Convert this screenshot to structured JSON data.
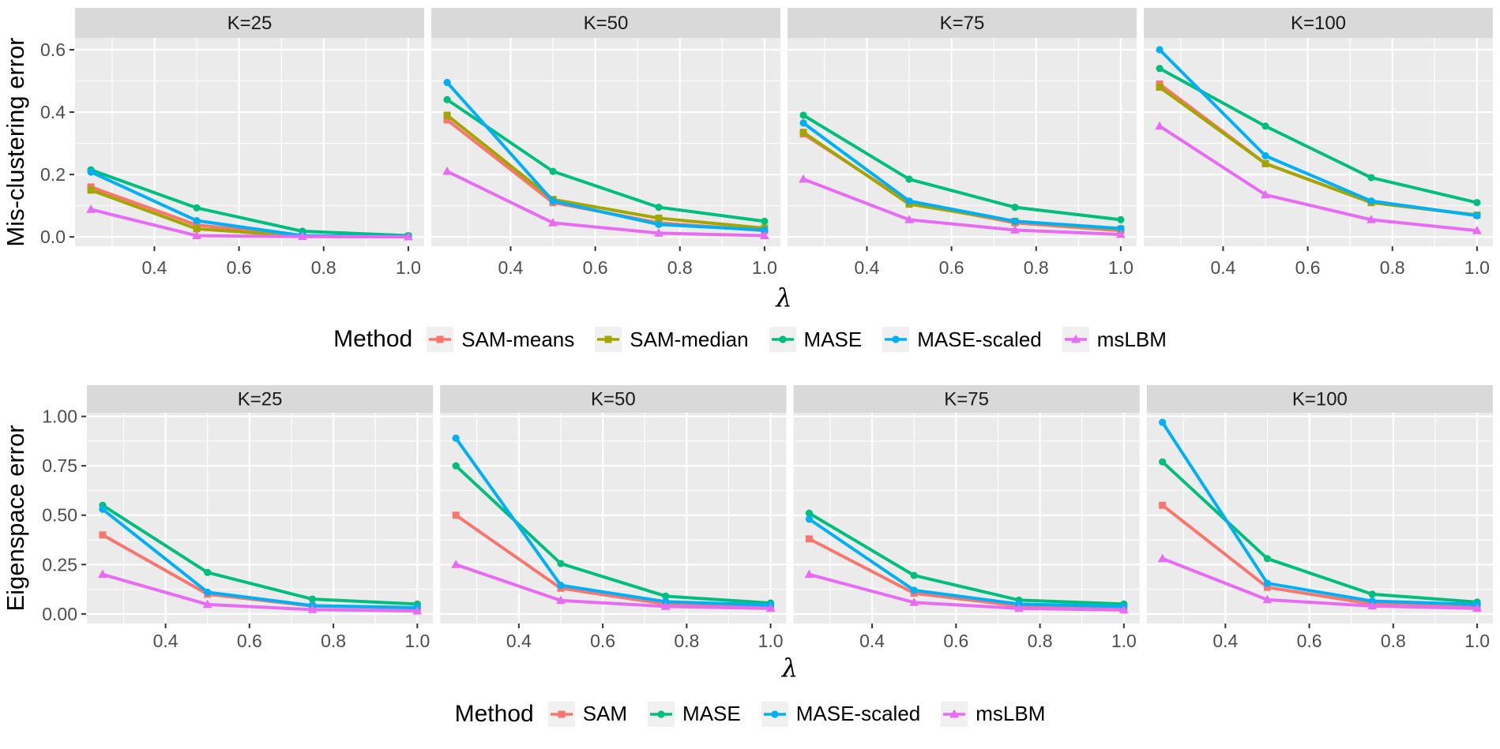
{
  "figure": {
    "background": "#ffffff",
    "panel_background": "#ebebeb",
    "strip_background": "#d9d9d9",
    "grid_color": "#ffffff",
    "axis_text_color": "#4d4d4d",
    "tick_mark_color": "#333333"
  },
  "chart_data": [
    {
      "type": "line",
      "title": "",
      "ylabel": "Mis-clustering error",
      "xlabel": "λ",
      "legend_title": "Method",
      "legend_position": "bottom",
      "grid": true,
      "facet_labels": [
        "K=25",
        "K=50",
        "K=75",
        "K=100"
      ],
      "x": [
        0.25,
        0.5,
        0.75,
        1.0
      ],
      "xlim": [
        0.2125,
        1.0375
      ],
      "ylim": [
        -0.03,
        0.638
      ],
      "x_major_ticks": [
        0.4,
        0.6,
        0.8,
        1.0
      ],
      "x_tick_labels": [
        "0.4",
        "0.6",
        "0.8",
        "1.0"
      ],
      "x_minor_ticks": [
        0.3,
        0.5,
        0.7,
        0.9
      ],
      "y_major_ticks": [
        0.0,
        0.2,
        0.4,
        0.6
      ],
      "y_tick_labels": [
        "0.0",
        "0.2",
        "0.4",
        "0.6"
      ],
      "y_minor_ticks": [
        0.1,
        0.3,
        0.5
      ],
      "methods": [
        {
          "name": "SAM-means",
          "color": "#F8766D",
          "shape": "square"
        },
        {
          "name": "SAM-median",
          "color": "#A3A500",
          "shape": "square"
        },
        {
          "name": "MASE",
          "color": "#00BF7D",
          "shape": "circle"
        },
        {
          "name": "MASE-scaled",
          "color": "#00B0F6",
          "shape": "circle"
        },
        {
          "name": "msLBM",
          "color": "#E76BF3",
          "shape": "triangle"
        }
      ],
      "facets": [
        {
          "label": "K=25",
          "series": [
            {
              "name": "SAM-means",
              "values": [
                0.16,
                0.038,
                0.003,
                0.001
              ]
            },
            {
              "name": "SAM-median",
              "values": [
                0.15,
                0.026,
                0.002,
                0.001
              ]
            },
            {
              "name": "MASE",
              "values": [
                0.215,
                0.093,
                0.018,
                0.004
              ]
            },
            {
              "name": "MASE-scaled",
              "values": [
                0.208,
                0.052,
                0.004,
                0.001
              ]
            },
            {
              "name": "msLBM",
              "values": [
                0.088,
                0.004,
                0.001,
                0.0
              ]
            }
          ]
        },
        {
          "label": "K=50",
          "series": [
            {
              "name": "SAM-means",
              "values": [
                0.375,
                0.11,
                0.045,
                0.02
              ]
            },
            {
              "name": "SAM-median",
              "values": [
                0.39,
                0.12,
                0.06,
                0.028
              ]
            },
            {
              "name": "MASE",
              "values": [
                0.44,
                0.21,
                0.095,
                0.05
              ]
            },
            {
              "name": "MASE-scaled",
              "values": [
                0.495,
                0.115,
                0.04,
                0.022
              ]
            },
            {
              "name": "msLBM",
              "values": [
                0.21,
                0.045,
                0.012,
                0.004
              ]
            }
          ]
        },
        {
          "label": "K=75",
          "series": [
            {
              "name": "SAM-means",
              "values": [
                0.33,
                0.11,
                0.045,
                0.02
              ]
            },
            {
              "name": "SAM-median",
              "values": [
                0.335,
                0.105,
                0.05,
                0.025
              ]
            },
            {
              "name": "MASE",
              "values": [
                0.39,
                0.185,
                0.095,
                0.055
              ]
            },
            {
              "name": "MASE-scaled",
              "values": [
                0.365,
                0.115,
                0.05,
                0.027
              ]
            },
            {
              "name": "msLBM",
              "values": [
                0.185,
                0.055,
                0.022,
                0.008
              ]
            }
          ]
        },
        {
          "label": "K=100",
          "series": [
            {
              "name": "SAM-means",
              "values": [
                0.49,
                0.235,
                0.11,
                0.07
              ]
            },
            {
              "name": "SAM-median",
              "values": [
                0.48,
                0.235,
                0.11,
                0.07
              ]
            },
            {
              "name": "MASE",
              "values": [
                0.54,
                0.355,
                0.19,
                0.11
              ]
            },
            {
              "name": "MASE-scaled",
              "values": [
                0.6,
                0.26,
                0.115,
                0.068
              ]
            },
            {
              "name": "msLBM",
              "values": [
                0.355,
                0.135,
                0.055,
                0.02
              ]
            }
          ]
        }
      ]
    },
    {
      "type": "line",
      "title": "",
      "ylabel": "Eigenspace error",
      "xlabel": "λ",
      "legend_title": "Method",
      "legend_position": "bottom",
      "grid": true,
      "facet_labels": [
        "K=25",
        "K=50",
        "K=75",
        "K=100"
      ],
      "x": [
        0.25,
        0.5,
        0.75,
        1.0
      ],
      "xlim": [
        0.2125,
        1.0375
      ],
      "ylim": [
        -0.0485,
        1.0185
      ],
      "x_major_ticks": [
        0.4,
        0.6,
        0.8,
        1.0
      ],
      "x_tick_labels": [
        "0.4",
        "0.6",
        "0.8",
        "1.0"
      ],
      "x_minor_ticks": [
        0.3,
        0.5,
        0.7,
        0.9
      ],
      "y_major_ticks": [
        0.0,
        0.25,
        0.5,
        0.75,
        1.0
      ],
      "y_tick_labels": [
        "0.00",
        "0.25",
        "0.50",
        "0.75",
        "1.00"
      ],
      "y_minor_ticks": [
        0.125,
        0.375,
        0.625,
        0.875
      ],
      "methods": [
        {
          "name": "SAM",
          "color": "#F8766D",
          "shape": "square"
        },
        {
          "name": "MASE",
          "color": "#00BF7D",
          "shape": "circle"
        },
        {
          "name": "MASE-scaled",
          "color": "#00B0F6",
          "shape": "circle"
        },
        {
          "name": "msLBM",
          "color": "#E76BF3",
          "shape": "triangle"
        }
      ],
      "facets": [
        {
          "label": "K=25",
          "series": [
            {
              "name": "SAM",
              "values": [
                0.4,
                0.1,
                0.04,
                0.03
              ]
            },
            {
              "name": "MASE",
              "values": [
                0.55,
                0.21,
                0.075,
                0.05
              ]
            },
            {
              "name": "MASE-scaled",
              "values": [
                0.53,
                0.11,
                0.042,
                0.032
              ]
            },
            {
              "name": "msLBM",
              "values": [
                0.2,
                0.048,
                0.022,
                0.015
              ]
            }
          ]
        },
        {
          "label": "K=50",
          "series": [
            {
              "name": "SAM",
              "values": [
                0.5,
                0.13,
                0.05,
                0.038
              ]
            },
            {
              "name": "MASE",
              "values": [
                0.75,
                0.255,
                0.09,
                0.055
              ]
            },
            {
              "name": "MASE-scaled",
              "values": [
                0.89,
                0.145,
                0.062,
                0.045
              ]
            },
            {
              "name": "msLBM",
              "values": [
                0.25,
                0.068,
                0.038,
                0.028
              ]
            }
          ]
        },
        {
          "label": "K=75",
          "series": [
            {
              "name": "SAM",
              "values": [
                0.38,
                0.105,
                0.04,
                0.03
              ]
            },
            {
              "name": "MASE",
              "values": [
                0.51,
                0.195,
                0.07,
                0.05
              ]
            },
            {
              "name": "MASE-scaled",
              "values": [
                0.48,
                0.12,
                0.05,
                0.038
              ]
            },
            {
              "name": "msLBM",
              "values": [
                0.2,
                0.058,
                0.028,
                0.02
              ]
            }
          ]
        },
        {
          "label": "K=100",
          "series": [
            {
              "name": "SAM",
              "values": [
                0.55,
                0.135,
                0.05,
                0.04
              ]
            },
            {
              "name": "MASE",
              "values": [
                0.77,
                0.28,
                0.1,
                0.06
              ]
            },
            {
              "name": "MASE-scaled",
              "values": [
                0.97,
                0.155,
                0.065,
                0.048
              ]
            },
            {
              "name": "msLBM",
              "values": [
                0.28,
                0.072,
                0.04,
                0.028
              ]
            }
          ]
        }
      ]
    }
  ]
}
